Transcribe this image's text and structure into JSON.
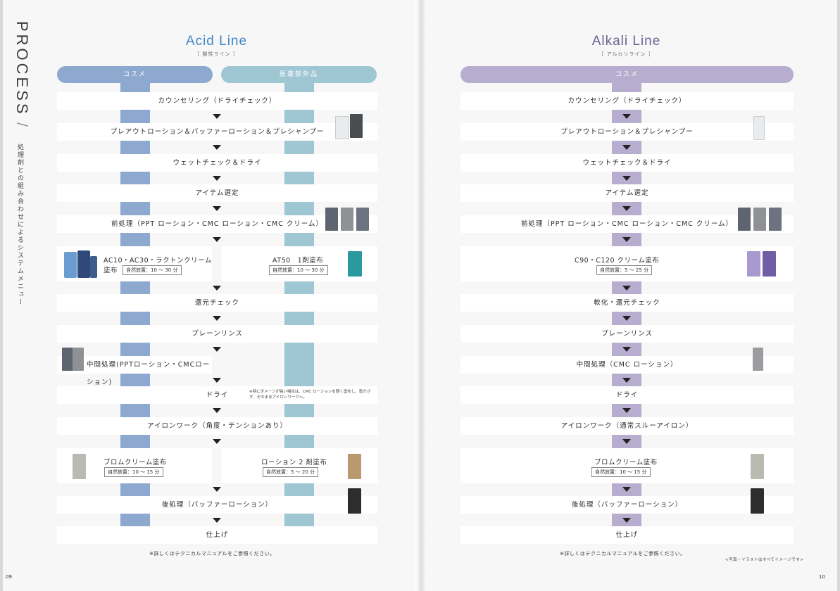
{
  "side": {
    "process_title": "PROCESS",
    "slash": "/",
    "process_sub": "処理剤との組み合わせによるシステムメニュー"
  },
  "acid": {
    "title": "Acid Line",
    "subtitle": "［ 酸性ライン ］",
    "lane_cosme": "コスメ",
    "lane_quasi": "医薬部外品",
    "steps": {
      "s1": "カウンセリング（ドライチェック）",
      "s2": "プレアウトローション＆バッファーローション＆プレシャンプー",
      "s3": "ウェットチェック＆ドライ",
      "s4": "アイテム選定",
      "s5": "前処理（PPT ローション・CMC ローション・CMC クリーム）",
      "s6a": "AC10・AC30・ラクトンクリーム塗布",
      "s6a_badge": "自然放置：10 〜 30 分",
      "s6b": "AT50　1剤塗布",
      "s6b_badge": "自然放置：10 〜 30 分",
      "s7": "還元チェック",
      "s8": "プレーンリンス",
      "s9": "中間処理(PPTローション・CMCローション)",
      "s10": "ドライ",
      "s10_note": "※特にダメージが強い場合は、CMC ローションを軽く塗布し、乾かさず、そのままアイロンワークへ。",
      "s11": "アイロンワーク（角度・テンションあり）",
      "s12a": "ブロムクリーム塗布",
      "s12a_badge": "自然放置：10 〜 15 分",
      "s12b": "ローション 2 剤塗布",
      "s12b_badge": "自然放置：5 〜 20 分",
      "s13": "後処理（バッファーローション）",
      "s14": "仕上げ"
    },
    "foot_note": "※詳しくはテクニカルマニュアルをご参照ください。",
    "page_number": "09"
  },
  "alkali": {
    "title": "Alkali Line",
    "subtitle": "［ アルカリライン ］",
    "lane_cosme": "コスメ",
    "steps": {
      "s1": "カウンセリング（ドライチェック）",
      "s2": "プレアウトローション＆プレシャンプー",
      "s3": "ウェットチェック＆ドライ",
      "s4": "アイテム選定",
      "s5": "前処理（PPT ローション・CMC ローション・CMC クリーム）",
      "s6": "C90・C120 クリーム塗布",
      "s6_badge": "自然放置：5 〜 25 分",
      "s7": "軟化・還元チェック",
      "s8": "プレーンリンス",
      "s9": "中間処理（CMC ローション）",
      "s10": "ドライ",
      "s11": "アイロンワーク（通常スルーアイロン）",
      "s12": "ブロムクリーム塗布",
      "s12_badge": "自然放置：10 〜 15 分",
      "s13": "後処理（バッファーローション）",
      "s14": "仕上げ"
    },
    "foot_note": "※詳しくはテクニカルマニュアルをご参照ください。",
    "photo_note": "<写真・イラストはすべてイメージです>",
    "page_number": "10"
  },
  "colors": {
    "acid_title": "#3f86c4",
    "acid_cosme": "#8ea9cf",
    "acid_quasi": "#9fc6d3",
    "alkali_title": "#6b6191",
    "alkali_cosme": "#b7aecf"
  }
}
